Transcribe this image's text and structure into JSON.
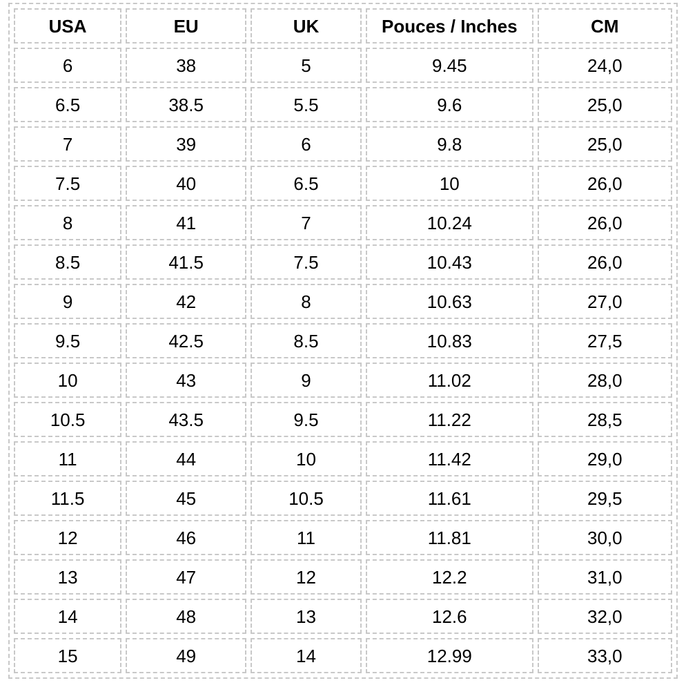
{
  "page": {
    "background_color": "#ffffff"
  },
  "table": {
    "title": "shoe-size-conversion-table",
    "border_color": "#c8c8c8",
    "text_color": "#000000",
    "columns": [
      {
        "key": "usa",
        "label": "USA"
      },
      {
        "key": "eu",
        "label": "EU"
      },
      {
        "key": "uk",
        "label": "UK"
      },
      {
        "key": "pouces_inches",
        "label": "Pouces / Inches"
      },
      {
        "key": "cm",
        "label": "CM"
      }
    ],
    "rows": [
      [
        "6",
        "38",
        "5",
        "9.45",
        "24,0"
      ],
      [
        "6.5",
        "38.5",
        "5.5",
        "9.6",
        "25,0"
      ],
      [
        "7",
        "39",
        "6",
        "9.8",
        "25,0"
      ],
      [
        "7.5",
        "40",
        "6.5",
        "10",
        "26,0"
      ],
      [
        "8",
        "41",
        "7",
        "10.24",
        "26,0"
      ],
      [
        "8.5",
        "41.5",
        "7.5",
        "10.43",
        "26,0"
      ],
      [
        "9",
        "42",
        "8",
        "10.63",
        "27,0"
      ],
      [
        "9.5",
        "42.5",
        "8.5",
        "10.83",
        "27,5"
      ],
      [
        "10",
        "43",
        "9",
        "11.02",
        "28,0"
      ],
      [
        "10.5",
        "43.5",
        "9.5",
        "11.22",
        "28,5"
      ],
      [
        "11",
        "44",
        "10",
        "11.42",
        "29,0"
      ],
      [
        "11.5",
        "45",
        "10.5",
        "11.61",
        "29,5"
      ],
      [
        "12",
        "46",
        "11",
        "11.81",
        "30,0"
      ],
      [
        "13",
        "47",
        "12",
        "12.2",
        "31,0"
      ],
      [
        "14",
        "48",
        "13",
        "12.6",
        "32,0"
      ],
      [
        "15",
        "49",
        "14",
        "12.99",
        "33,0"
      ]
    ]
  }
}
